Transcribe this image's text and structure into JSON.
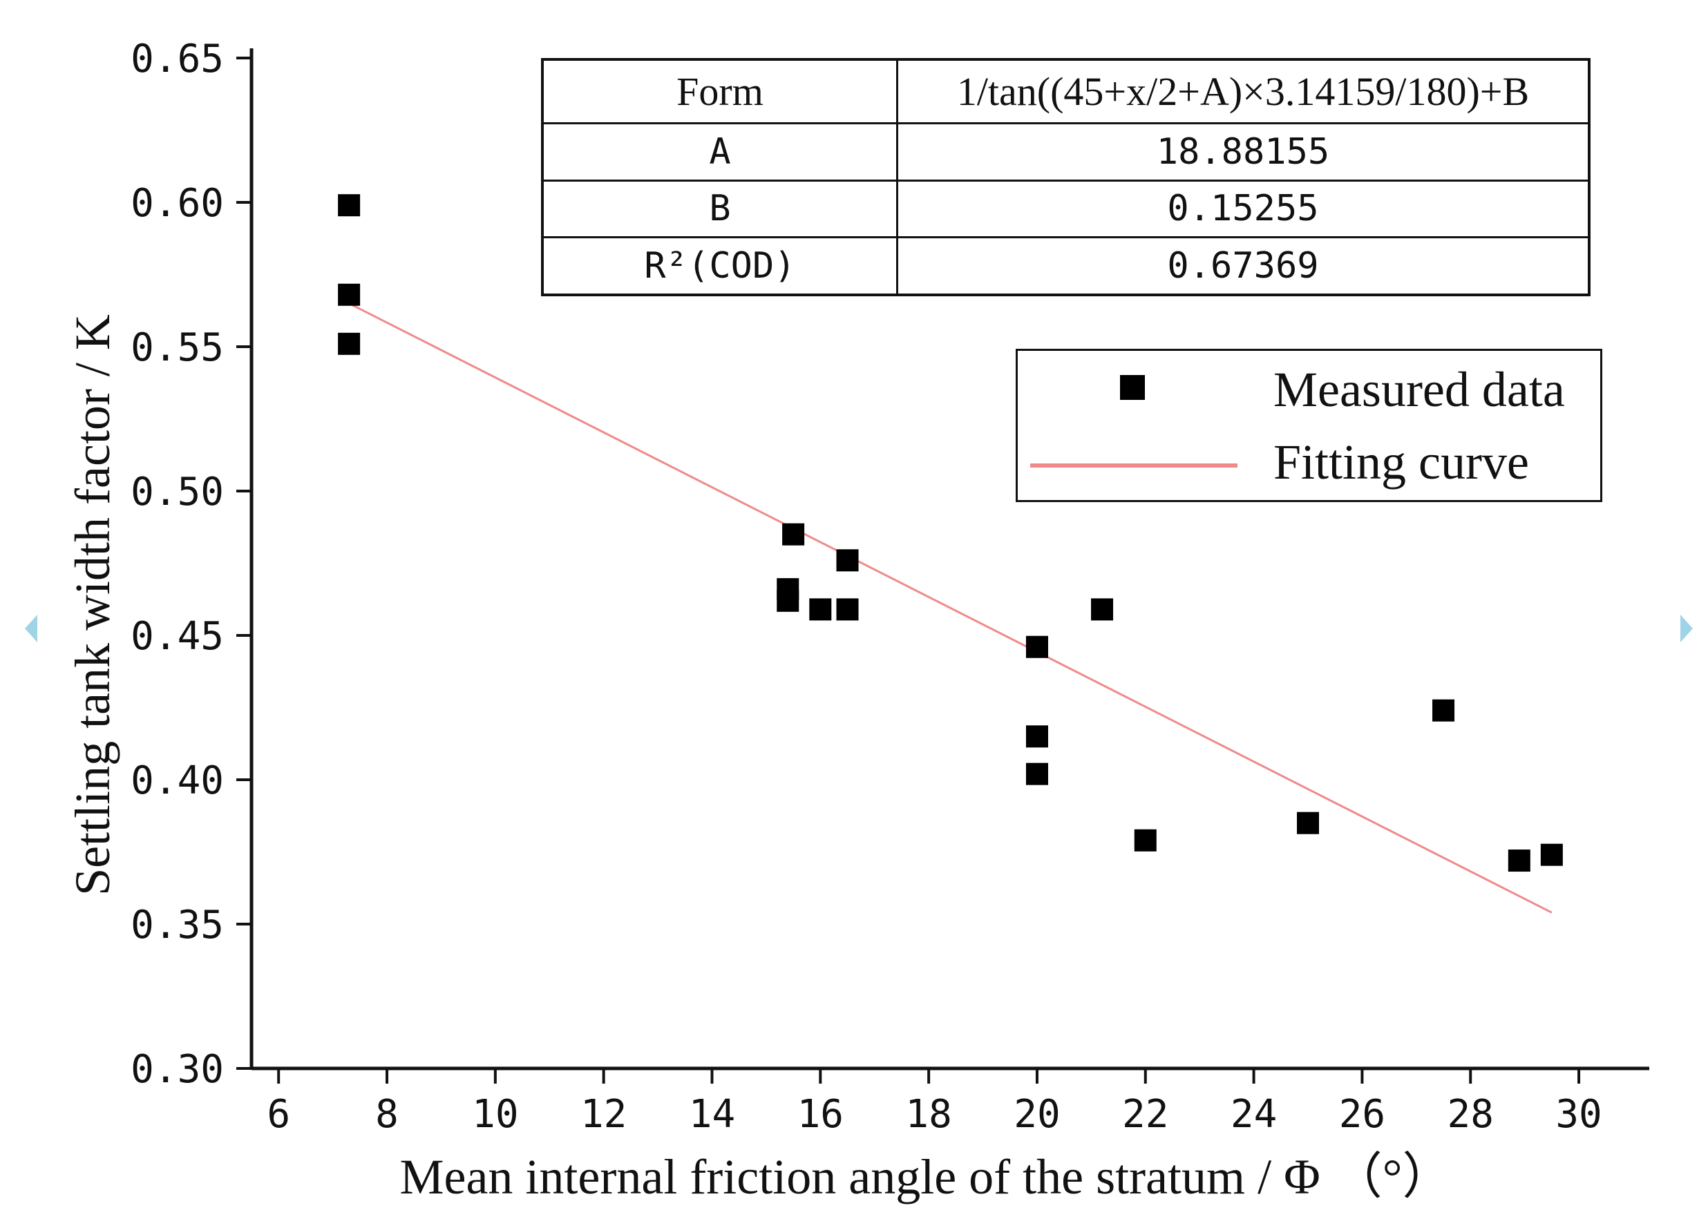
{
  "chart_data": {
    "type": "scatter",
    "xlabel": "Mean internal friction angle of the stratum / Φ （°）",
    "ylabel": "Settling tank width factor / K",
    "xlim": [
      5.5,
      31.3
    ],
    "ylim": [
      0.3,
      0.65
    ],
    "x_ticks": [
      "6",
      "8",
      "10",
      "12",
      "14",
      "16",
      "18",
      "20",
      "22",
      "24",
      "26",
      "28",
      "30"
    ],
    "y_ticks": [
      "0.30",
      "0.35",
      "0.40",
      "0.45",
      "0.50",
      "0.55",
      "0.60",
      "0.65"
    ],
    "series": [
      {
        "name": "Measured data",
        "marker": "square",
        "color": "#000000",
        "points": [
          [
            7.3,
            0.599
          ],
          [
            7.3,
            0.568
          ],
          [
            7.3,
            0.551
          ],
          [
            15.5,
            0.485
          ],
          [
            16.5,
            0.476
          ],
          [
            15.4,
            0.466
          ],
          [
            15.4,
            0.462
          ],
          [
            16.0,
            0.459
          ],
          [
            16.5,
            0.459
          ],
          [
            20.0,
            0.446
          ],
          [
            21.2,
            0.459
          ],
          [
            20.0,
            0.415
          ],
          [
            20.0,
            0.402
          ],
          [
            22.0,
            0.379
          ],
          [
            25.0,
            0.385
          ],
          [
            27.5,
            0.424
          ],
          [
            28.9,
            0.372
          ],
          [
            29.5,
            0.374
          ]
        ]
      },
      {
        "name": "Fitting curve",
        "type": "line",
        "color": "#f08a8a",
        "x": [
          7.3,
          29.5
        ],
        "y": [
          0.565,
          0.354
        ]
      }
    ],
    "fit_table": {
      "form_label": "Form",
      "form_value": "1/tan((45+x/2+A)×3.14159/180)+B",
      "rows": [
        {
          "label": "A",
          "value": "18.88155"
        },
        {
          "label": "B",
          "value": "0.15255"
        },
        {
          "label": "R²(COD)",
          "value": "0.67369"
        }
      ]
    },
    "legend": {
      "items": [
        "Measured data",
        "Fitting curve"
      ],
      "placement": "top-right"
    }
  }
}
